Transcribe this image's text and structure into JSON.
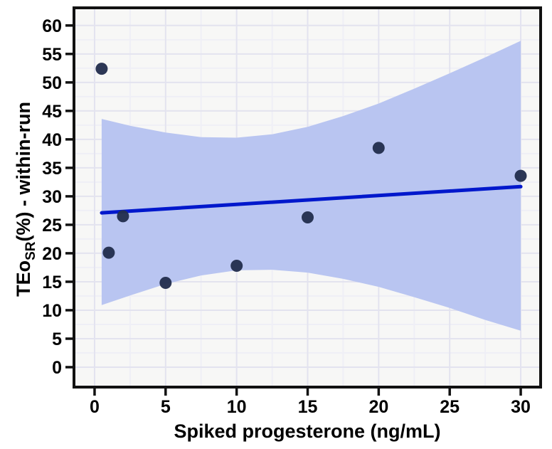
{
  "chart_data": {
    "type": "scatter",
    "title": "",
    "xlabel": "Spiked progesterone (ng/mL)",
    "ylabel": "TEo_SR(%) - within-run",
    "ylabel_parts": {
      "pre": "TEo",
      "sub": "SR",
      "post": "(%) - within-run"
    },
    "xlim": [
      -1.45,
      31.4
    ],
    "ylim": [
      -3.5,
      63.1
    ],
    "x_ticks": [
      0,
      5,
      10,
      15,
      20,
      25,
      30
    ],
    "y_ticks": [
      0,
      5,
      10,
      15,
      20,
      25,
      30,
      35,
      40,
      45,
      50,
      55,
      60
    ],
    "minor_grid_step": 2.5,
    "grid": true,
    "legend": "none",
    "points": [
      {
        "x": 0.5,
        "y": 52.4
      },
      {
        "x": 1,
        "y": 20.1
      },
      {
        "x": 2,
        "y": 26.5
      },
      {
        "x": 5,
        "y": 14.8
      },
      {
        "x": 10,
        "y": 17.8
      },
      {
        "x": 15,
        "y": 26.3
      },
      {
        "x": 20,
        "y": 38.5
      },
      {
        "x": 30,
        "y": 33.6
      }
    ],
    "regression_line": {
      "x1": 0.5,
      "y1": 27.1,
      "x2": 30,
      "y2": 31.7
    },
    "confidence_band": [
      {
        "x": 0.5,
        "lower": 10.9,
        "upper": 43.6
      },
      {
        "x": 2.5,
        "lower": 12.6,
        "upper": 42.4
      },
      {
        "x": 5,
        "lower": 14.6,
        "upper": 41.2
      },
      {
        "x": 7.5,
        "lower": 16.1,
        "upper": 40.4
      },
      {
        "x": 10,
        "lower": 17.0,
        "upper": 40.3
      },
      {
        "x": 12.5,
        "lower": 17.1,
        "upper": 40.9
      },
      {
        "x": 15,
        "lower": 16.6,
        "upper": 42.2
      },
      {
        "x": 17.5,
        "lower": 15.5,
        "upper": 44.1
      },
      {
        "x": 20,
        "lower": 14.1,
        "upper": 46.3
      },
      {
        "x": 22.5,
        "lower": 12.3,
        "upper": 48.9
      },
      {
        "x": 25,
        "lower": 10.4,
        "upper": 51.6
      },
      {
        "x": 27.5,
        "lower": 8.3,
        "upper": 54.4
      },
      {
        "x": 30,
        "lower": 6.4,
        "upper": 57.3
      }
    ],
    "colors": {
      "band": "#b9c5f1",
      "line": "#0018cc",
      "point": "#232f4e",
      "frame": "#111111",
      "major_grid": "#e3e3ef",
      "minor_grid": "#efeff6",
      "plot_bg": "#f7f7f6",
      "page_bg": "#ffffff",
      "text": "#000000"
    }
  }
}
